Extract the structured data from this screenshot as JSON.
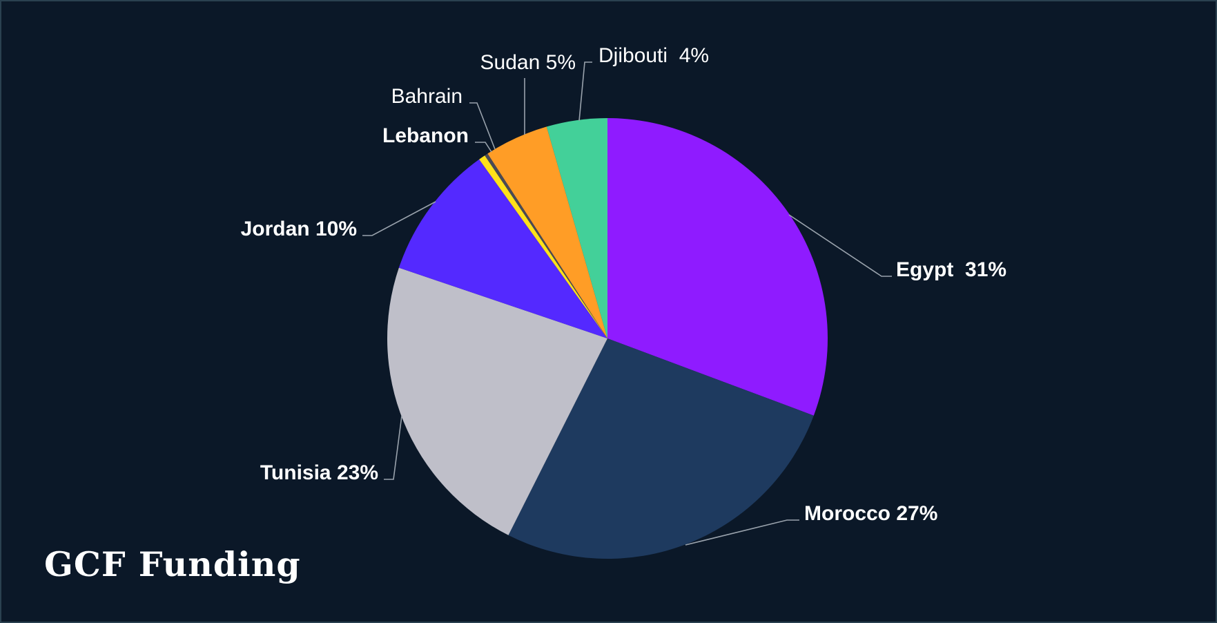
{
  "title": "GCF Funding",
  "chart_data": {
    "type": "pie",
    "title": "GCF Funding",
    "slices": [
      {
        "name": "Egypt",
        "value": 31,
        "label": "Egypt  31%",
        "color": "#8f1bff"
      },
      {
        "name": "Morocco",
        "value": 27,
        "label": "Morocco 27%",
        "color": "#1e3a5f"
      },
      {
        "name": "Tunisia",
        "value": 23,
        "label": "Tunisia 23%",
        "color": "#bfbfc9"
      },
      {
        "name": "Jordan",
        "value": 10,
        "label": "Jordan 10%",
        "color": "#5429ff"
      },
      {
        "name": "Lebanon",
        "value": 0.5,
        "label": "Lebanon",
        "color": "#ffe11a"
      },
      {
        "name": "Bahrain",
        "value": 0.25,
        "label": "Bahrain",
        "color": "#4a4a55"
      },
      {
        "name": "Sudan",
        "value": 4.75,
        "label": "Sudan 5%",
        "color": "#ff9d26"
      },
      {
        "name": "Djibouti",
        "value": 4.5,
        "label": "Djibouti  4%",
        "color": "#43d099"
      }
    ],
    "start_angle": "12 o'clock",
    "direction": "clockwise",
    "legend": "none",
    "label_style": "outside labels with leader lines"
  }
}
